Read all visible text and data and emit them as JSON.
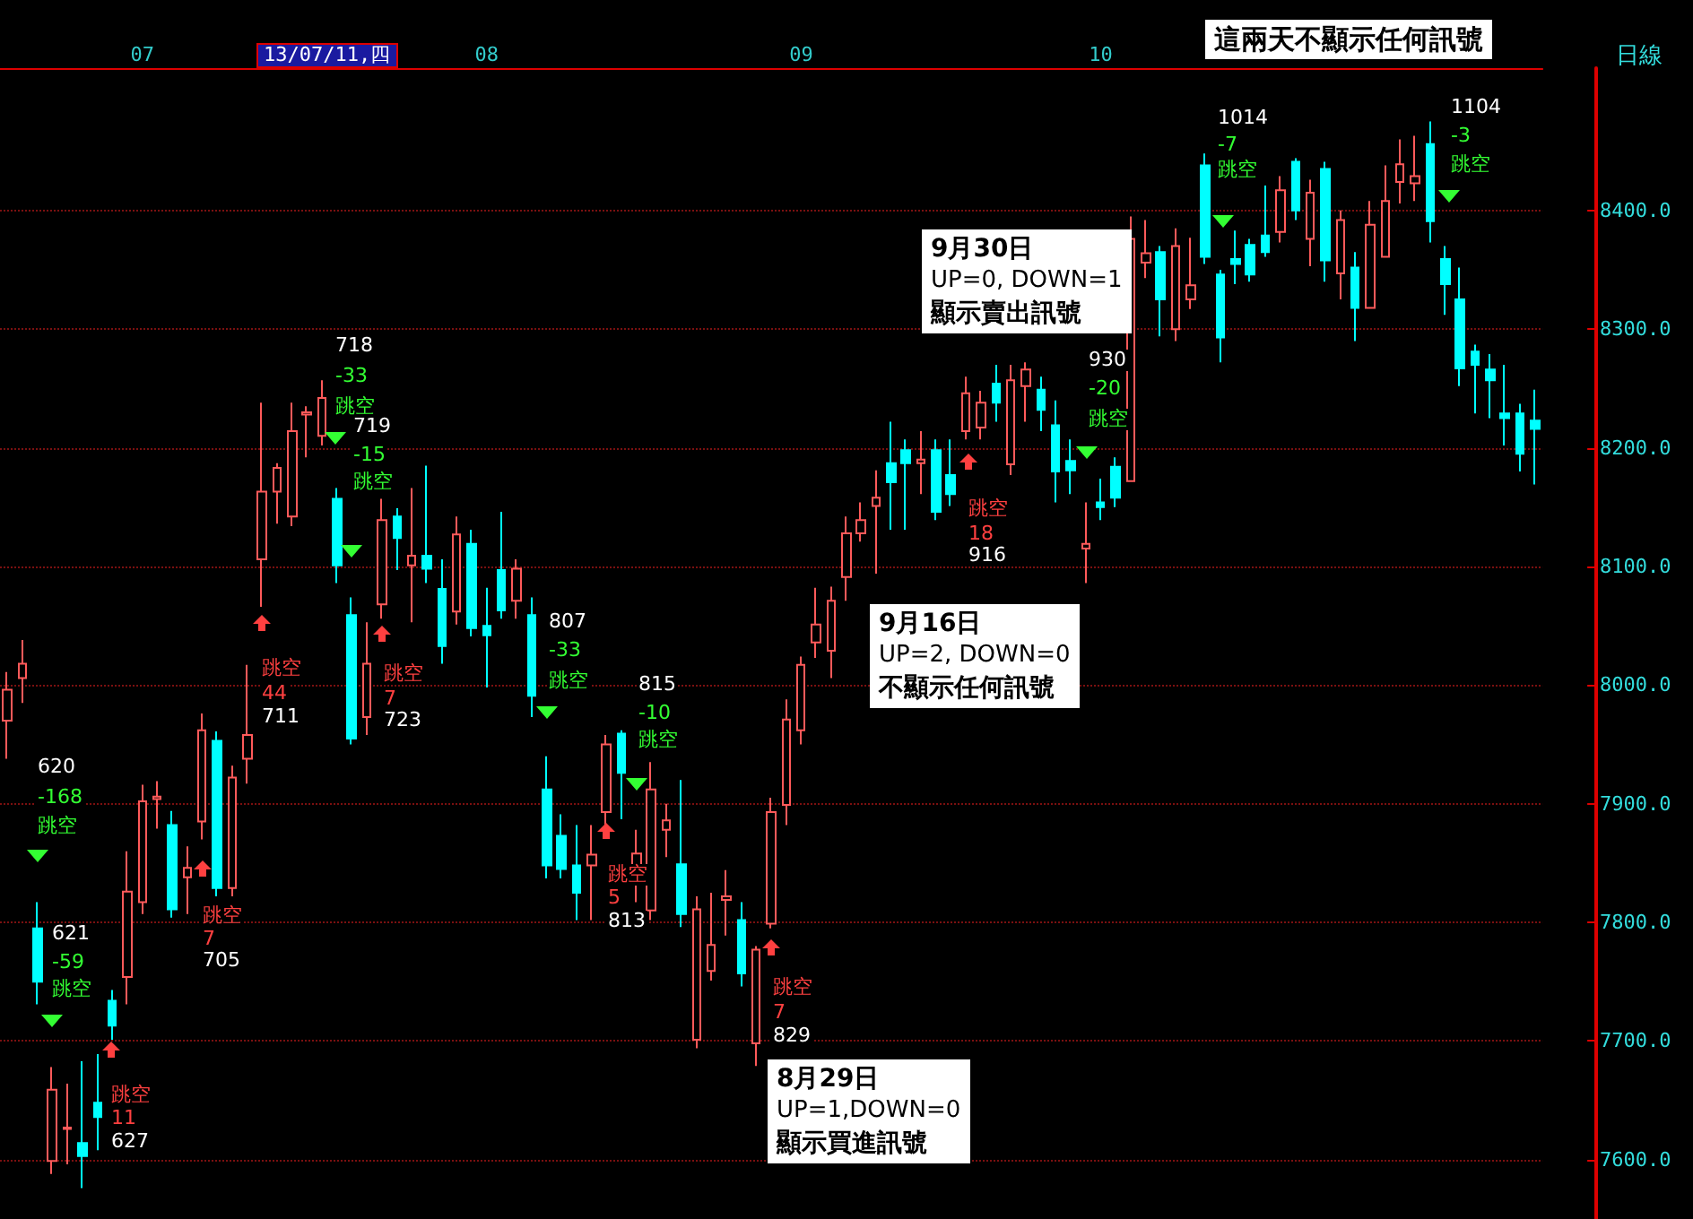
{
  "chart_data": {
    "type": "candlestick",
    "categories": [
      null,
      null,
      null,
      null,
      null,
      null,
      null,
      null,
      null,
      "07",
      null,
      null,
      null,
      null,
      null,
      null,
      null,
      null,
      null,
      null,
      null,
      null,
      null,
      null,
      null,
      null,
      null,
      null,
      null,
      null,
      null,
      null,
      "08",
      null,
      null,
      null,
      null,
      null,
      null,
      null,
      null,
      null,
      null,
      null,
      null,
      null,
      null,
      null,
      null,
      null,
      null,
      null,
      null,
      "09",
      null,
      null,
      null,
      null,
      null,
      null,
      null,
      null,
      null,
      null,
      null,
      null,
      null,
      null,
      null,
      null,
      null,
      null,
      null,
      "10",
      null,
      null,
      null,
      null,
      null,
      null,
      null,
      null,
      null,
      null,
      null,
      null,
      null,
      null,
      null,
      null,
      null,
      null,
      null,
      null,
      null,
      null,
      null,
      null,
      null,
      null,
      null,
      null,
      null
    ],
    "ohlc": [
      [
        7970,
        8011,
        7938,
        7996
      ],
      [
        8006,
        8038,
        7985,
        8018
      ],
      [
        7795,
        7817,
        7731,
        7750
      ],
      [
        7599,
        7678,
        7588,
        7659
      ],
      [
        7626,
        7664,
        7596,
        7627
      ],
      [
        7614,
        7683,
        7576,
        7603
      ],
      [
        7648,
        7689,
        7608,
        7636
      ],
      [
        7734,
        7743,
        7701,
        7713
      ],
      [
        7754,
        7860,
        7731,
        7826
      ],
      [
        7817,
        7916,
        7807,
        7902
      ],
      [
        7904,
        7919,
        7879,
        7906
      ],
      [
        7882,
        7894,
        7804,
        7811
      ],
      [
        7838,
        7864,
        7807,
        7846
      ],
      [
        7885,
        7976,
        7870,
        7962
      ],
      [
        7953,
        7961,
        7822,
        7829
      ],
      [
        7829,
        7932,
        7822,
        7922
      ],
      [
        7938,
        8017,
        7917,
        7958
      ],
      [
        8106,
        8238,
        8066,
        8163
      ],
      [
        8163,
        8187,
        8136,
        8183
      ],
      [
        8142,
        8238,
        8134,
        8214
      ],
      [
        8228,
        8235,
        8192,
        8230
      ],
      [
        8210,
        8257,
        8202,
        8242
      ],
      [
        8157,
        8166,
        8086,
        8101
      ],
      [
        8059,
        8074,
        7950,
        7955
      ],
      [
        7973,
        8053,
        7958,
        8018
      ],
      [
        8068,
        8157,
        8056,
        8139
      ],
      [
        8142,
        8149,
        8097,
        8124
      ],
      [
        8101,
        8166,
        8053,
        8109
      ],
      [
        8109,
        8185,
        8086,
        8098
      ],
      [
        8081,
        8106,
        8018,
        8033
      ],
      [
        8062,
        8142,
        8051,
        8127
      ],
      [
        8119,
        8131,
        8041,
        8048
      ],
      [
        8050,
        8082,
        7998,
        8042
      ],
      [
        8097,
        8146,
        8056,
        8063
      ],
      [
        8071,
        8106,
        8056,
        8098
      ],
      [
        8059,
        8074,
        7973,
        7991
      ],
      [
        7912,
        7940,
        7837,
        7848
      ],
      [
        7873,
        7891,
        7837,
        7845
      ],
      [
        7848,
        7882,
        7802,
        7825
      ],
      [
        7848,
        7882,
        7802,
        7857
      ],
      [
        7893,
        7958,
        7882,
        7950
      ],
      [
        7959,
        7962,
        7887,
        7926
      ],
      [
        7848,
        7878,
        7817,
        7858
      ],
      [
        7810,
        7935,
        7802,
        7912
      ],
      [
        7878,
        7900,
        7855,
        7886
      ],
      [
        7849,
        7920,
        7796,
        7807
      ],
      [
        7701,
        7822,
        7694,
        7811
      ],
      [
        7759,
        7825,
        7751,
        7781
      ],
      [
        7819,
        7844,
        7789,
        7822
      ],
      [
        7802,
        7817,
        7746,
        7757
      ],
      [
        7698,
        7780,
        7679,
        7777
      ],
      [
        7799,
        7905,
        7795,
        7893
      ],
      [
        7899,
        7988,
        7882,
        7971
      ],
      [
        7962,
        8024,
        7950,
        8017
      ],
      [
        8036,
        8082,
        8023,
        8051
      ],
      [
        8029,
        8083,
        8006,
        8071
      ],
      [
        8091,
        8142,
        8071,
        8128
      ],
      [
        8128,
        8154,
        8121,
        8139
      ],
      [
        8151,
        8181,
        8094,
        8158
      ],
      [
        8187,
        8222,
        8131,
        8171
      ],
      [
        8198,
        8207,
        8131,
        8187
      ],
      [
        8187,
        8214,
        8161,
        8190
      ],
      [
        8198,
        8207,
        8139,
        8146
      ],
      [
        8177,
        8207,
        8151,
        8161
      ],
      [
        8214,
        8260,
        8207,
        8246
      ],
      [
        8217,
        8248,
        8207,
        8238
      ],
      [
        8254,
        8270,
        8222,
        8238
      ],
      [
        8186,
        8270,
        8177,
        8257
      ],
      [
        8252,
        8272,
        8222,
        8266
      ],
      [
        8249,
        8260,
        8214,
        8232
      ],
      [
        8219,
        8240,
        8154,
        8180
      ],
      [
        8189,
        8207,
        8161,
        8181
      ],
      [
        8115,
        8154,
        8086,
        8119
      ],
      [
        8154,
        8174,
        8139,
        8150
      ],
      [
        8184,
        8192,
        8150,
        8158
      ],
      [
        8172,
        8395,
        8172,
        8376
      ],
      [
        8356,
        8392,
        8343,
        8364
      ],
      [
        8365,
        8370,
        8294,
        8325
      ],
      [
        8300,
        8385,
        8290,
        8370
      ],
      [
        8325,
        8377,
        8317,
        8337
      ],
      [
        8438,
        8448,
        8355,
        8361
      ],
      [
        8346,
        8350,
        8272,
        8293
      ],
      [
        8359,
        8383,
        8338,
        8355
      ],
      [
        8371,
        8376,
        8340,
        8346
      ],
      [
        8379,
        8421,
        8361,
        8365
      ],
      [
        8382,
        8429,
        8373,
        8417
      ],
      [
        8441,
        8444,
        8392,
        8400
      ],
      [
        8376,
        8426,
        8353,
        8415
      ],
      [
        8435,
        8441,
        8340,
        8358
      ],
      [
        8347,
        8400,
        8325,
        8392
      ],
      [
        8352,
        8365,
        8290,
        8318
      ],
      [
        8318,
        8408,
        8318,
        8388
      ],
      [
        8361,
        8438,
        8361,
        8408
      ],
      [
        8424,
        8460,
        8406,
        8439
      ],
      [
        8423,
        8463,
        8408,
        8429
      ],
      [
        8456,
        8475,
        8373,
        8391
      ],
      [
        8359,
        8370,
        8312,
        8338
      ],
      [
        8325,
        8352,
        8252,
        8267
      ],
      [
        8281,
        8287,
        8229,
        8270
      ],
      [
        8266,
        8279,
        8225,
        8257
      ],
      [
        8229,
        8270,
        8202,
        8225
      ],
      [
        8229,
        8237,
        8180,
        8195
      ],
      [
        8223,
        8249,
        8169,
        8216
      ]
    ],
    "ylim": [
      7550,
      8520
    ],
    "yticks": [
      {
        "value": 7600,
        "label": "7600.0"
      },
      {
        "value": 7700,
        "label": "7700.0"
      },
      {
        "value": 7800,
        "label": "7800.0"
      },
      {
        "value": 7900,
        "label": "7900.0"
      },
      {
        "value": 8000,
        "label": "8000.0"
      },
      {
        "value": 8100,
        "label": "8100.0"
      },
      {
        "value": 8200,
        "label": "8200.0"
      },
      {
        "value": 8300,
        "label": "8300.0"
      },
      {
        "value": 8400,
        "label": "8400.0"
      }
    ],
    "grid": "y",
    "annotations": [
      "日線",
      "13/07/11,四",
      "這兩天不顯示任何訊號",
      "9月30日",
      "UP=0, DOWN=1",
      "顯示賣出訊號",
      "9月16日",
      "UP=2, DOWN=0",
      "不顯示任何訊號",
      "8月29日",
      "UP=1,DOWN=0",
      "顯示買進訊號",
      "620",
      "-168",
      "跳空",
      "621",
      "-59",
      "跳空",
      "跳空",
      "11",
      "627",
      "跳空",
      "7",
      "705",
      "跳空",
      "44",
      "711",
      "718",
      "-33",
      "跳空",
      "719",
      "-15",
      "跳空",
      "跳空",
      "7",
      "723",
      "807",
      "-33",
      "跳空",
      "815",
      "-10",
      "跳空",
      "跳空",
      "5",
      "813",
      "跳空",
      "7",
      "829",
      "跳空",
      "18",
      "916",
      "930",
      "-20",
      "跳空",
      "1014",
      "-7",
      "跳空",
      "1104",
      "-3",
      "跳空"
    ]
  }
}
